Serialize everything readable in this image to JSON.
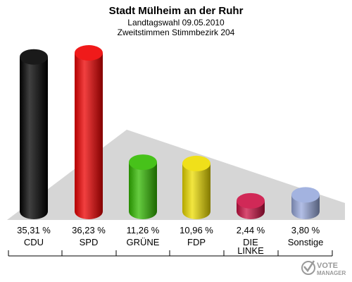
{
  "chart_data": {
    "type": "bar",
    "title": "Stadt Mülheim an der Ruhr",
    "subtitle1": "Landtagswahl 09.05.2010",
    "subtitle2": "Zweitstimmen Stimmbezirk 204",
    "categories": [
      "CDU",
      "SPD",
      "GRÜNE",
      "FDP",
      "DIE LINKE",
      "Sonstige"
    ],
    "values": [
      35.31,
      36.23,
      11.26,
      10.96,
      2.44,
      3.8
    ],
    "value_labels": [
      "35,31 %",
      "36,23 %",
      "11,26 %",
      "10,96 %",
      "2,44 %",
      "3,80 %"
    ],
    "colors": [
      "#000000",
      "#ee0000",
      "#33bb00",
      "#eedd00",
      "#cc1144",
      "#99aadd"
    ],
    "ylim": [
      0,
      36.23
    ]
  },
  "logo": {
    "line1": "VOTE",
    "line2": "MANAGER"
  }
}
